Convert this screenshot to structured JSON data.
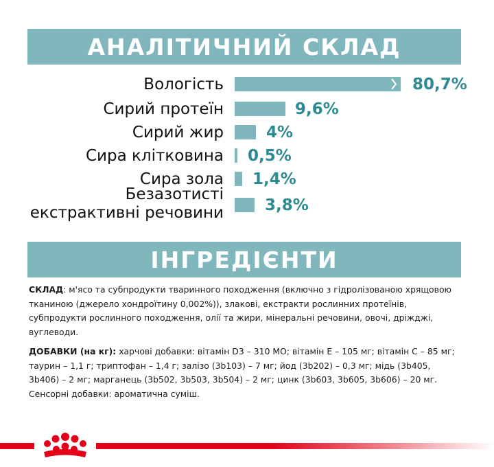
{
  "sections": {
    "analysis_title": "АНАЛІТИЧНИЙ СКЛАД",
    "ingredients_title": "ІНГРЕДІЄНТИ"
  },
  "analysis": [
    {
      "label": "Вологість",
      "value": "80,7%",
      "percent": 80.7
    },
    {
      "label": "Сирий протеїн",
      "value": "9,6%",
      "percent": 9.6
    },
    {
      "label": "Сирий жир",
      "value": "4%",
      "percent": 4
    },
    {
      "label": "Сира клітковина",
      "value": "0,5%",
      "percent": 0.5
    },
    {
      "label": "Сира зола",
      "value": "1,4%",
      "percent": 1.4
    },
    {
      "label_line1": "Безазотисті",
      "label_line2": "екстрактивні речовини",
      "value": "3,8%",
      "percent": 3.8
    }
  ],
  "ingredients": {
    "composition_label": "СКЛАД",
    "composition_text": ": м'ясо та субпродукти тваринного походження (включно з гідролізованою хрящовою тканиною (джерело хондроїтину 0,002%)), злакові, екстракти рослинних протеїнів, субпродукти рослинного походження, олії та жири, мінеральні речовини, овочі, дріжджі, вуглеводи.",
    "additives_label": "ДОБАВКИ (на кг):",
    "additives_text": " харчові добавки: вітамін D3 – 310 МО; вітамін Е – 105 мг; вітамін С – 85 мг; таурин – 1,1 г; триптофан – 1,4 г; залізо (3b103) – 7 мг; йод (3b202) – 0,3 мг; мідь (3b405, 3b406) – 2 мг; марганець (3b502, 3b503, 3b504) – 2 мг; цинк (3b603, 3b605, 3b606) – 20 мг. Сенсорні добавки: ароматична суміш."
  },
  "colors": {
    "accent": "#7fb7bc",
    "value_text": "#2e8a92",
    "brand_red": "#e2001a"
  },
  "logo": {
    "icon": "royal-canin-crown-icon"
  }
}
